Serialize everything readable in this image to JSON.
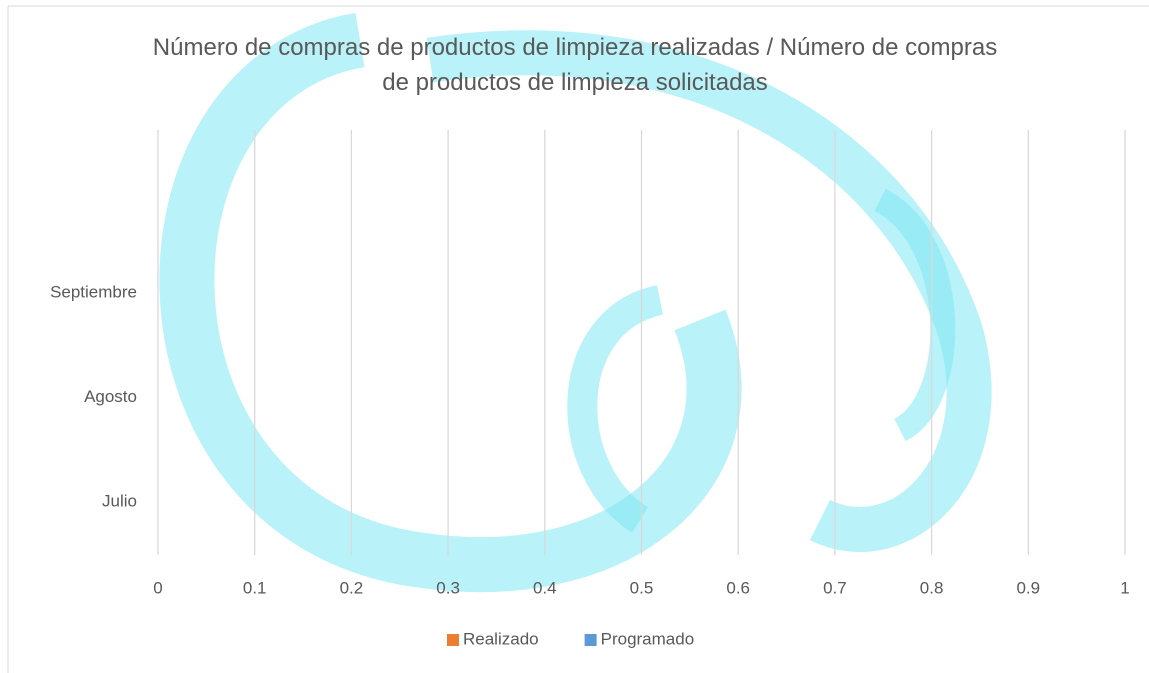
{
  "chart_data": {
    "type": "hbar",
    "title": "Número de compras de productos de limpieza realizadas / Número de compras de productos de limpieza solicitadas",
    "categories": [
      "Julio",
      "Agosto",
      "Septiembre"
    ],
    "series": [
      {
        "name": "Realizado",
        "color": "#ed7d31",
        "values": [
          0,
          0,
          0
        ]
      },
      {
        "name": "Programado",
        "color": "#5b9bd5",
        "values": [
          0,
          0,
          0
        ]
      }
    ],
    "xlim": [
      0,
      1
    ],
    "xticks": [
      0,
      0.1,
      0.2,
      0.3,
      0.4,
      0.5,
      0.6,
      0.7,
      0.8,
      0.9,
      1
    ],
    "grid": true,
    "legend": "bottom"
  }
}
